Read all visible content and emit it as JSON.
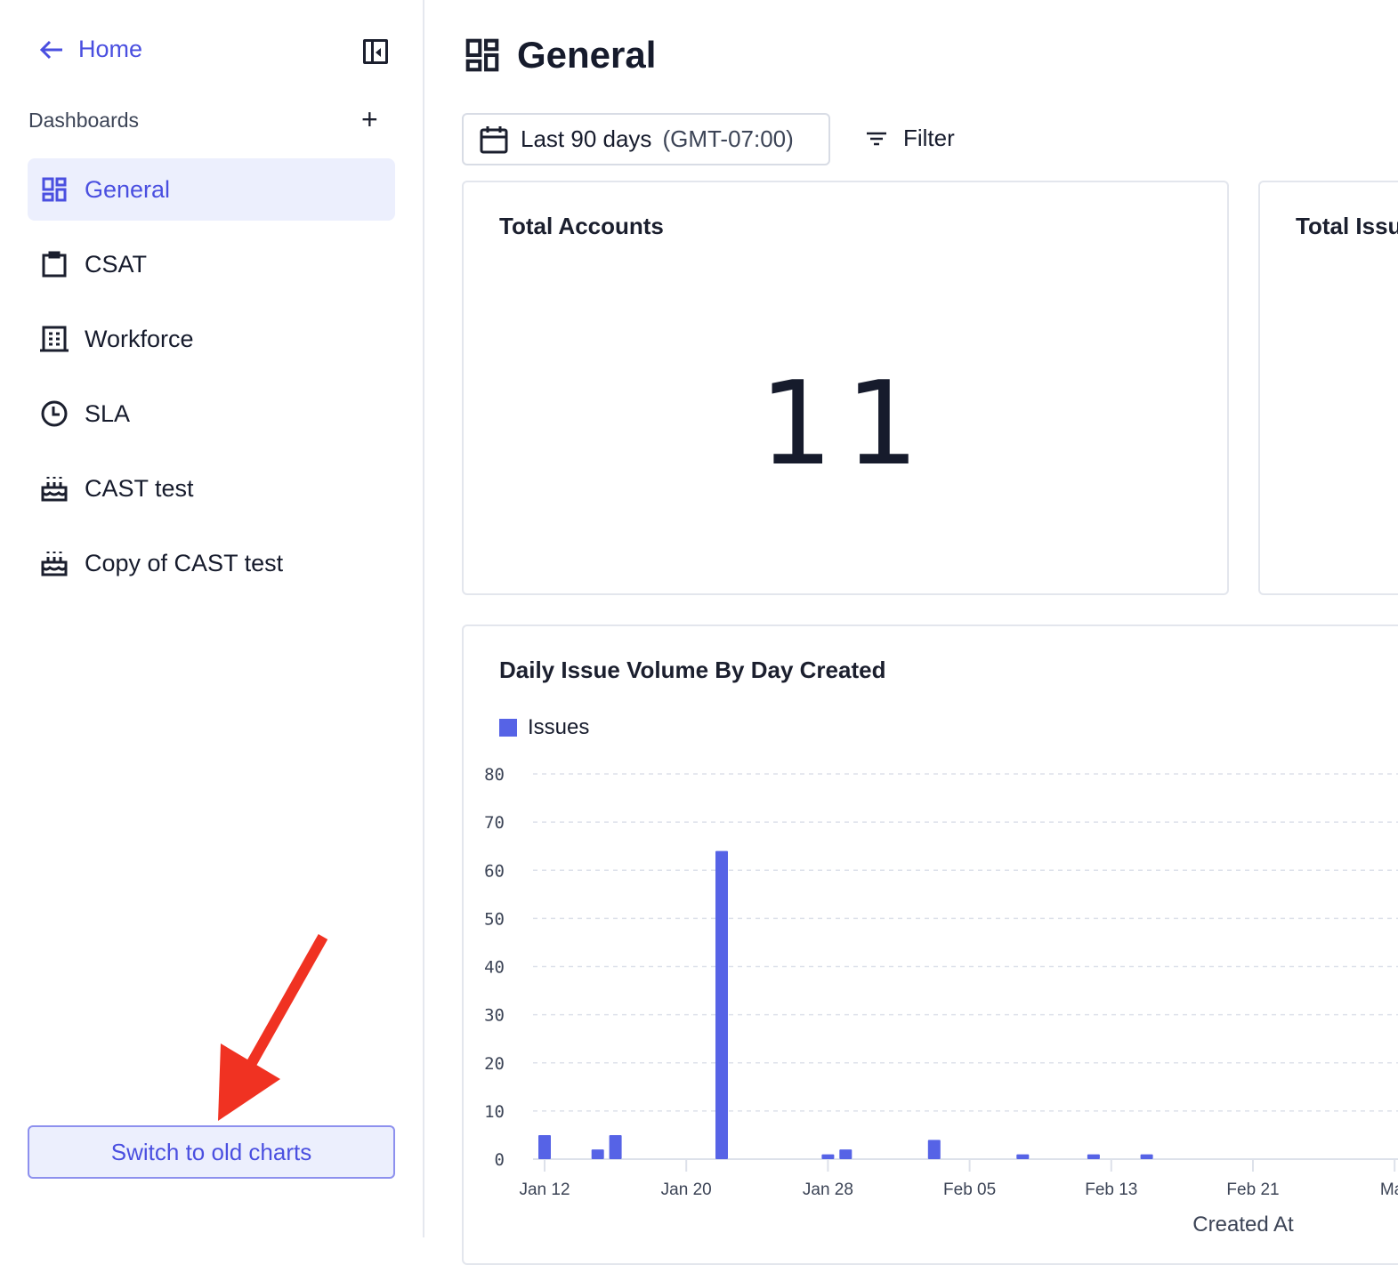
{
  "sidebar": {
    "home_label": "Home",
    "dashboards_heading": "Dashboards",
    "items": [
      {
        "label": "General",
        "icon": "grid-icon",
        "active": true
      },
      {
        "label": "CSAT",
        "icon": "clipboard-icon"
      },
      {
        "label": "Workforce",
        "icon": "building-icon"
      },
      {
        "label": "SLA",
        "icon": "clock-icon"
      },
      {
        "label": "CAST test",
        "icon": "cake-icon"
      },
      {
        "label": "Copy of CAST test",
        "icon": "cake-icon"
      }
    ],
    "switch_label": "Switch to old charts"
  },
  "header": {
    "title": "General",
    "date_range": "Last 90 days",
    "timezone": "(GMT-07:00)",
    "filter_label": "Filter"
  },
  "cards": {
    "total_accounts": {
      "title": "Total Accounts",
      "value": "11"
    },
    "total_issues": {
      "title": "Total Issu"
    }
  },
  "colors": {
    "accent": "#4a4fe0",
    "bar": "#5663e6",
    "annotation_arrow": "#f03222"
  },
  "chart_data": {
    "type": "bar",
    "title": "Daily Issue Volume By Day Created",
    "xlabel": "Created At",
    "series": [
      {
        "name": "Issues",
        "points": [
          {
            "date": "Jan 12",
            "value": 5
          },
          {
            "date": "Jan 15",
            "value": 2
          },
          {
            "date": "Jan 16",
            "value": 5
          },
          {
            "date": "Jan 22",
            "value": 64
          },
          {
            "date": "Jan 28",
            "value": 1
          },
          {
            "date": "Jan 29",
            "value": 2
          },
          {
            "date": "Feb 03",
            "value": 4
          },
          {
            "date": "Feb 08",
            "value": 1
          },
          {
            "date": "Feb 12",
            "value": 1
          },
          {
            "date": "Feb 15",
            "value": 1
          }
        ]
      }
    ],
    "x_ticks": [
      "Jan 12",
      "Jan 20",
      "Jan 28",
      "Feb 05",
      "Feb 13",
      "Feb 21",
      "Mar"
    ],
    "y_ticks": [
      "0",
      "10",
      "20",
      "30",
      "40",
      "50",
      "60",
      "70",
      "80"
    ],
    "ylim": [
      0,
      80
    ],
    "grid": true,
    "legend": "top-left"
  }
}
